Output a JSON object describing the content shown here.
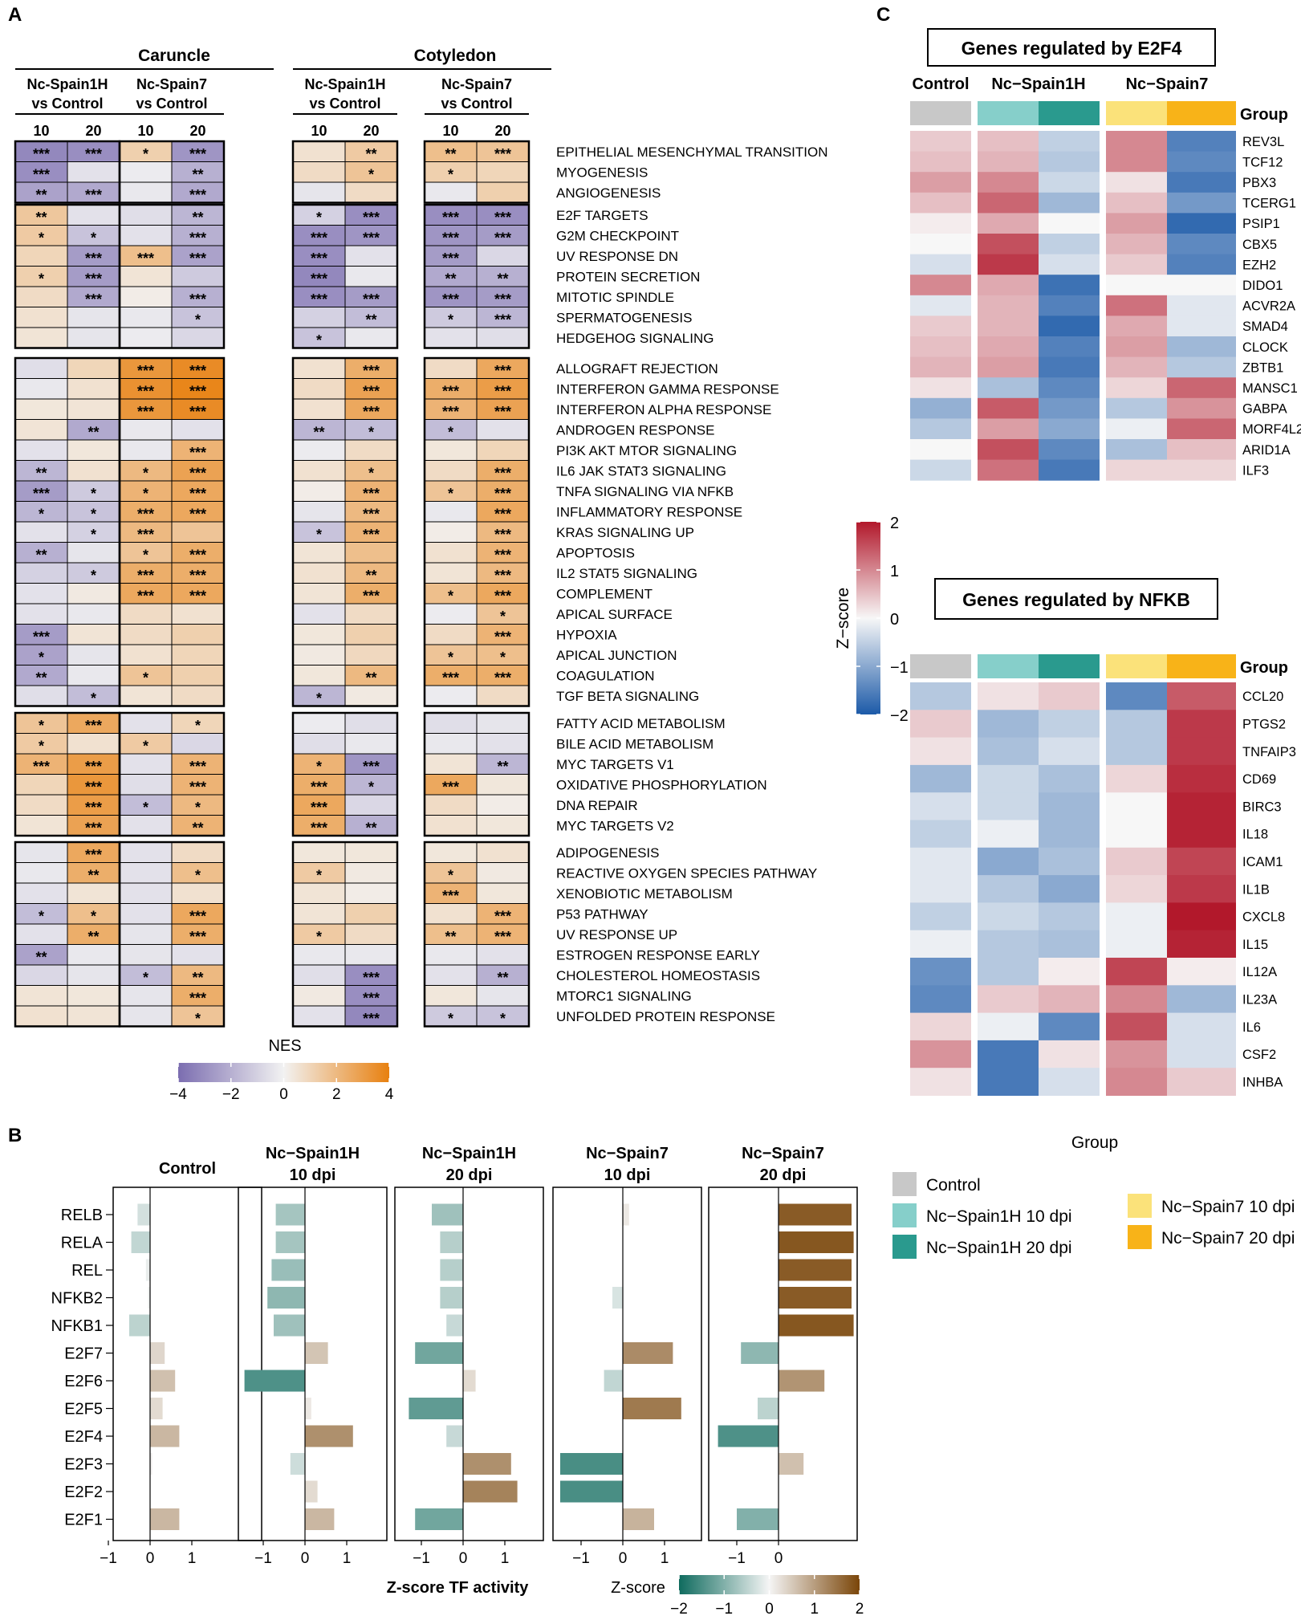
{
  "panels": {
    "A": "A",
    "B": "B",
    "C": "C"
  },
  "panelA": {
    "tissues": [
      "Caruncle",
      "Cotyledon"
    ],
    "comparisons": [
      "Nc-Spain1H\nvs Control",
      "Nc-Spain7\nvs Control",
      "Nc-Spain1H\nvs Control",
      "Nc-Spain7\nvs Control"
    ],
    "days": [
      "10",
      "20"
    ],
    "pathways": [
      "EPITHELIAL MESENCHYMAL TRANSITION",
      "MYOGENESIS",
      "ANGIOGENESIS",
      "E2F TARGETS",
      "G2M CHECKPOINT",
      "UV RESPONSE DN",
      "PROTEIN SECRETION",
      "MITOTIC SPINDLE",
      "SPERMATOGENESIS",
      "HEDGEHOG SIGNALING",
      "ALLOGRAFT REJECTION",
      "INTERFERON GAMMA RESPONSE",
      "INTERFERON ALPHA RESPONSE",
      "ANDROGEN RESPONSE",
      "PI3K AKT MTOR SIGNALING",
      "IL6 JAK STAT3 SIGNALING",
      "TNFA SIGNALING VIA NFKB",
      "INFLAMMATORY RESPONSE",
      "KRAS SIGNALING UP",
      "APOPTOSIS",
      "IL2 STAT5 SIGNALING",
      "COMPLEMENT",
      "APICAL SURFACE",
      "HYPOXIA",
      "APICAL JUNCTION",
      "COAGULATION",
      "TGF BETA SIGNALING",
      "FATTY ACID METABOLISM",
      "BILE ACID METABOLISM",
      "MYC TARGETS V1",
      "OXIDATIVE PHOSPHORYLATION",
      "DNA REPAIR",
      "MYC TARGETS V2",
      "ADIPOGENESIS",
      "REACTIVE OXYGEN SPECIES PATHWAY",
      "XENOBIOTIC METABOLISM",
      "P53 PATHWAY",
      "UV RESPONSE UP",
      "ESTROGEN RESPONSE EARLY",
      "CHOLESTEROL HOMEOSTASIS",
      "MTORC1 SIGNALING",
      "UNFOLDED PROTEIN RESPONSE"
    ],
    "row_groups": [
      3,
      7,
      17,
      6,
      9
    ],
    "nes": [
      [
        -3.2,
        -3.0,
        1.2,
        -2.8,
        0.6,
        1.4,
        1.8,
        1.6
      ],
      [
        -3.0,
        -0.5,
        -0.2,
        -2.0,
        0.8,
        1.6,
        1.2,
        1.0
      ],
      [
        -2.4,
        -2.2,
        -0.3,
        -2.2,
        -0.4,
        0.8,
        -0.3,
        1.2
      ],
      [
        1.5,
        -0.5,
        -0.6,
        -1.8,
        -1.0,
        -3.0,
        -3.0,
        -3.0
      ],
      [
        1.4,
        -1.4,
        -0.5,
        -2.0,
        -3.0,
        -2.8,
        -2.8,
        -2.6
      ],
      [
        1.0,
        -2.6,
        1.8,
        -2.4,
        -3.0,
        -0.5,
        -2.6,
        -0.8
      ],
      [
        1.2,
        -2.6,
        0.5,
        -1.2,
        -3.2,
        -0.3,
        -2.2,
        -2.0
      ],
      [
        0.8,
        -2.2,
        0.2,
        -2.0,
        -3.0,
        -2.6,
        -2.8,
        -2.6
      ],
      [
        0.6,
        -0.4,
        -0.3,
        -1.4,
        -1.0,
        -1.6,
        -1.2,
        -1.8
      ],
      [
        0.5,
        -0.4,
        -0.2,
        -0.8,
        -1.4,
        -0.3,
        -0.5,
        -0.6
      ],
      [
        -0.6,
        1.0,
        3.2,
        3.6,
        0.6,
        2.4,
        0.8,
        2.6
      ],
      [
        -0.3,
        0.6,
        3.4,
        3.8,
        0.8,
        2.8,
        2.4,
        3.0
      ],
      [
        0.4,
        0.5,
        3.2,
        3.6,
        0.6,
        2.6,
        2.2,
        2.8
      ],
      [
        0.5,
        -2.2,
        -0.3,
        -0.5,
        -1.8,
        -1.6,
        -1.6,
        -0.5
      ],
      [
        -0.5,
        0.4,
        -0.3,
        2.2,
        -0.2,
        0.8,
        0.4,
        1.0
      ],
      [
        -1.8,
        0.6,
        2.0,
        2.8,
        0.6,
        1.8,
        0.8,
        2.4
      ],
      [
        -2.6,
        -1.2,
        2.2,
        2.6,
        0.2,
        2.2,
        1.6,
        2.4
      ],
      [
        -1.8,
        -1.4,
        2.4,
        2.6,
        -0.4,
        2.0,
        -0.3,
        2.6
      ],
      [
        -0.5,
        -1.0,
        2.0,
        1.6,
        -1.4,
        2.2,
        0.2,
        2.0
      ],
      [
        -2.0,
        -0.4,
        1.6,
        2.4,
        0.5,
        1.8,
        0.6,
        2.2
      ],
      [
        -1.0,
        -1.2,
        2.4,
        2.4,
        0.6,
        2.0,
        0.5,
        2.0
      ],
      [
        -0.5,
        0.3,
        2.6,
        2.6,
        0.5,
        2.4,
        1.8,
        2.6
      ],
      [
        -0.5,
        -0.3,
        0.8,
        0.6,
        -0.5,
        0.8,
        -0.2,
        1.6
      ],
      [
        -2.6,
        0.5,
        0.8,
        1.2,
        0.4,
        1.2,
        0.8,
        2.2
      ],
      [
        -2.4,
        -0.4,
        0.6,
        1.0,
        0.3,
        0.9,
        1.6,
        1.8
      ],
      [
        -2.2,
        -0.3,
        1.6,
        1.2,
        0.4,
        2.0,
        2.4,
        2.4
      ],
      [
        -0.6,
        -1.6,
        0.5,
        0.8,
        -1.8,
        0.3,
        -0.2,
        0.8
      ],
      [
        1.6,
        2.6,
        -0.5,
        1.0,
        -0.2,
        -0.6,
        -0.6,
        -0.4
      ],
      [
        1.4,
        0.6,
        1.4,
        -0.8,
        -0.6,
        -0.3,
        -0.3,
        -0.5
      ],
      [
        2.2,
        3.0,
        -0.5,
        2.2,
        2.2,
        -2.8,
        0.5,
        -1.8
      ],
      [
        1.0,
        3.2,
        -0.6,
        2.2,
        2.4,
        -1.8,
        2.6,
        0.4
      ],
      [
        0.8,
        3.0,
        -1.6,
        2.0,
        2.6,
        -0.8,
        0.8,
        0.2
      ],
      [
        0.5,
        2.8,
        -0.5,
        2.2,
        2.4,
        -2.0,
        0.6,
        0.4
      ],
      [
        -0.4,
        2.6,
        -0.5,
        0.8,
        0.4,
        0.4,
        0.4,
        0.6
      ],
      [
        -0.3,
        2.4,
        -0.5,
        1.8,
        1.4,
        0.3,
        1.6,
        0.3
      ],
      [
        -0.5,
        0.5,
        -0.5,
        0.6,
        0.5,
        0.2,
        2.2,
        0.4
      ],
      [
        -1.6,
        1.8,
        -0.5,
        2.6,
        0.5,
        1.2,
        0.6,
        2.2
      ],
      [
        -0.5,
        2.4,
        -0.4,
        2.4,
        1.4,
        0.8,
        1.8,
        2.2
      ],
      [
        -2.4,
        -0.3,
        -0.4,
        -0.5,
        -0.3,
        -0.3,
        -0.3,
        -0.5
      ],
      [
        -0.8,
        -0.4,
        -1.6,
        2.0,
        -0.6,
        -3.0,
        -0.5,
        -2.0
      ],
      [
        0.5,
        0.4,
        -0.4,
        2.4,
        0.3,
        -3.0,
        0.4,
        -0.4
      ],
      [
        0.6,
        0.5,
        -0.4,
        1.6,
        -0.5,
        -3.2,
        -1.2,
        -1.4
      ]
    ],
    "stars": [
      [
        "***",
        "***",
        "*",
        "***",
        "",
        "**",
        "**",
        "***"
      ],
      [
        "***",
        "",
        "",
        "**",
        "",
        "*",
        "*",
        ""
      ],
      [
        "**",
        "***",
        "",
        "***",
        "",
        "",
        "",
        ""
      ],
      [
        "**",
        "",
        "",
        "**",
        "*",
        "***",
        "***",
        "***"
      ],
      [
        "*",
        "*",
        "",
        "***",
        "***",
        "***",
        "***",
        "***"
      ],
      [
        "",
        "***",
        "***",
        "***",
        "***",
        "",
        "***",
        ""
      ],
      [
        "*",
        "***",
        "",
        "",
        "***",
        "",
        "**",
        "**"
      ],
      [
        "",
        "***",
        "",
        "***",
        "***",
        "***",
        "***",
        "***"
      ],
      [
        "",
        "",
        "",
        "*",
        "",
        "**",
        "*",
        "***"
      ],
      [
        "",
        "",
        "",
        "",
        "*",
        "",
        "",
        ""
      ],
      [
        "",
        "",
        "***",
        "***",
        "",
        "***",
        "",
        "***"
      ],
      [
        "",
        "",
        "***",
        "***",
        "",
        "***",
        "***",
        "***"
      ],
      [
        "",
        "",
        "***",
        "***",
        "",
        "***",
        "***",
        "***"
      ],
      [
        "",
        "**",
        "",
        "",
        "**",
        "*",
        "*",
        ""
      ],
      [
        "",
        "",
        "",
        "***",
        "",
        "",
        "",
        ""
      ],
      [
        "**",
        "",
        "*",
        "***",
        "",
        "*",
        "",
        "***"
      ],
      [
        "***",
        "*",
        "*",
        "***",
        "",
        "***",
        "*",
        "***"
      ],
      [
        "*",
        "*",
        "***",
        "***",
        "",
        "***",
        "",
        "***"
      ],
      [
        "",
        "*",
        "***",
        "",
        "*",
        "***",
        "",
        "***"
      ],
      [
        "**",
        "",
        "*",
        "***",
        "",
        "",
        "",
        "***"
      ],
      [
        "",
        "*",
        "***",
        "***",
        "",
        "**",
        "",
        "***"
      ],
      [
        "",
        "",
        "***",
        "***",
        "",
        "***",
        "*",
        "***"
      ],
      [
        "",
        "",
        "",
        "",
        "",
        "",
        "",
        "*"
      ],
      [
        "***",
        "",
        "",
        "",
        "",
        "",
        "",
        "***"
      ],
      [
        "*",
        "",
        "",
        "",
        "",
        "",
        "*",
        "*"
      ],
      [
        "**",
        "",
        "*",
        "",
        "",
        "**",
        "***",
        "***"
      ],
      [
        "",
        "*",
        "",
        "",
        "*",
        "",
        "",
        ""
      ],
      [
        "*",
        "***",
        "",
        "*",
        "",
        "",
        "",
        ""
      ],
      [
        "*",
        "",
        "*",
        "",
        "",
        "",
        "",
        ""
      ],
      [
        "***",
        "***",
        "",
        "***",
        "*",
        "***",
        "",
        "**"
      ],
      [
        "",
        "***",
        "",
        "***",
        "***",
        "*",
        "***",
        ""
      ],
      [
        "",
        "***",
        "*",
        "*",
        "***",
        "",
        "",
        ""
      ],
      [
        "",
        "***",
        "",
        "**",
        "***",
        "**",
        "",
        ""
      ],
      [
        "",
        "***",
        "",
        "",
        "",
        "",
        "",
        ""
      ],
      [
        "",
        "**",
        "",
        "*",
        "*",
        "",
        "*",
        ""
      ],
      [
        "",
        "",
        "",
        "",
        "",
        "",
        "***",
        ""
      ],
      [
        "*",
        "*",
        "",
        "***",
        "",
        "",
        "",
        "***"
      ],
      [
        "",
        "**",
        "",
        "***",
        "*",
        "",
        "**",
        "***"
      ],
      [
        "**",
        "",
        "",
        "",
        "",
        "",
        "",
        ""
      ],
      [
        "",
        "",
        "*",
        "**",
        "",
        "***",
        "",
        "**"
      ],
      [
        "",
        "",
        "",
        "***",
        "",
        "***",
        "",
        ""
      ],
      [
        "",
        "",
        "",
        "*",
        "",
        "***",
        "*",
        "*"
      ]
    ],
    "legend": {
      "title": "NES",
      "ticks": [
        "−4",
        "−2",
        "0",
        "2",
        "4"
      ]
    }
  },
  "panelB": {
    "facets": [
      "Control",
      "Nc−Spain1H\n10 dpi",
      "Nc−Spain1H\n20 dpi",
      "Nc−Spain7\n10 dpi",
      "Nc−Spain7\n20 dpi"
    ],
    "tfs": [
      "RELB",
      "RELA",
      "REL",
      "NFKB2",
      "NFKB1",
      "E2F7",
      "E2F6",
      "E2F5",
      "E2F4",
      "E2F3",
      "E2F2",
      "E2F1"
    ],
    "values": [
      [
        -0.3,
        -0.45,
        -0.1,
        -0.05,
        -0.5,
        0.35,
        0.6,
        0.3,
        0.7,
        0.05,
        0.0,
        0.7
      ],
      [
        -0.7,
        -0.7,
        -0.8,
        -0.9,
        -0.75,
        0.55,
        -1.45,
        0.15,
        1.15,
        -0.35,
        0.3,
        0.7
      ],
      [
        -0.75,
        -0.55,
        -0.55,
        -0.55,
        -0.4,
        -1.15,
        0.3,
        -1.3,
        -0.4,
        1.15,
        1.3,
        -1.15
      ],
      [
        0.15,
        0.0,
        0.0,
        -0.25,
        0.0,
        1.2,
        -0.45,
        1.4,
        0.0,
        -1.5,
        -1.5,
        0.75
      ],
      [
        1.75,
        1.8,
        1.75,
        1.75,
        1.8,
        -0.9,
        1.1,
        -0.5,
        -1.45,
        0.6,
        0.0,
        -1.0
      ]
    ],
    "axes_ticks": [
      [
        "−1",
        "0",
        "1"
      ],
      [
        "−1",
        "0",
        "1"
      ],
      [
        "−1",
        "0",
        "1"
      ],
      [
        "−1",
        "0",
        "1"
      ],
      [
        "−1",
        "0"
      ]
    ],
    "xlabel": "Z-score TF activity",
    "colorbar": {
      "title": "Z-score",
      "ticks": [
        "−2",
        "−1",
        "0",
        "1",
        "2"
      ]
    }
  },
  "panelC": {
    "e2f4": {
      "title": "Genes regulated by E2F4",
      "groups": [
        "Control",
        "Nc−Spain1H",
        "Nc−Spain7"
      ],
      "group_label": "Group",
      "genes": [
        "REV3L",
        "TCF12",
        "PBX3",
        "TCERG1",
        "PSIP1",
        "CBX5",
        "EZH2",
        "DIDO1",
        "ACVR2A",
        "SMAD4",
        "CLOCK",
        "ZBTB1",
        "MANSC1",
        "GABPA",
        "MORF4L2",
        "ARID1A",
        "ILF3"
      ],
      "z": [
        [
          0.4,
          0.5,
          -0.5,
          1.0,
          -1.5
        ],
        [
          0.5,
          0.6,
          -0.6,
          1.0,
          -1.4
        ],
        [
          0.8,
          1.0,
          -0.4,
          0.2,
          -1.6
        ],
        [
          0.5,
          1.3,
          -0.8,
          0.5,
          -1.2
        ],
        [
          0.1,
          0.7,
          0.0,
          0.8,
          -1.8
        ],
        [
          0.0,
          1.5,
          -0.5,
          0.6,
          -1.4
        ],
        [
          -0.3,
          1.7,
          -0.3,
          0.4,
          -1.5
        ],
        [
          1.0,
          0.7,
          -1.7,
          0.0,
          0.0
        ],
        [
          -0.2,
          0.6,
          -1.5,
          1.2,
          -0.2
        ],
        [
          0.4,
          0.6,
          -1.8,
          0.7,
          -0.2
        ],
        [
          0.5,
          0.7,
          -1.5,
          0.8,
          -0.8
        ],
        [
          0.6,
          0.8,
          -1.6,
          0.6,
          -0.6
        ],
        [
          0.2,
          -0.7,
          -1.4,
          0.3,
          1.3
        ],
        [
          -0.9,
          1.4,
          -1.2,
          -0.6,
          0.9
        ],
        [
          -0.6,
          0.8,
          -1.0,
          -0.1,
          1.3
        ],
        [
          0.0,
          1.5,
          -1.4,
          -0.7,
          0.5
        ],
        [
          -0.4,
          1.2,
          -1.6,
          0.3,
          0.3
        ]
      ]
    },
    "nfkb": {
      "title": "Genes regulated by NFKB",
      "groups": [
        "Control",
        "Nc−Spain1H",
        "Nc−Spain7"
      ],
      "group_label": "Group",
      "genes": [
        "CCL20",
        "PTGS2",
        "TNFAIP3",
        "CD69",
        "BIRC3",
        "IL18",
        "ICAM1",
        "IL1B",
        "CXCL8",
        "IL15",
        "IL12A",
        "IL23A",
        "IL6",
        "CSF2",
        "INHBA"
      ],
      "z": [
        [
          -0.6,
          0.2,
          0.4,
          -1.4,
          1.4
        ],
        [
          0.4,
          -0.8,
          -0.5,
          -0.6,
          1.7
        ],
        [
          0.2,
          -0.7,
          -0.3,
          -0.6,
          1.7
        ],
        [
          -0.8,
          -0.4,
          -0.7,
          0.3,
          1.8
        ],
        [
          -0.3,
          -0.4,
          -0.8,
          0.0,
          1.9
        ],
        [
          -0.5,
          -0.1,
          -0.8,
          0.0,
          1.9
        ],
        [
          -0.2,
          -1.0,
          -0.7,
          0.4,
          1.6
        ],
        [
          -0.2,
          -0.6,
          -1.0,
          0.3,
          1.7
        ],
        [
          -0.5,
          -0.4,
          -0.6,
          -0.1,
          2.0
        ],
        [
          -0.1,
          -0.6,
          -0.7,
          -0.1,
          1.9
        ],
        [
          -1.3,
          -0.6,
          0.1,
          1.6,
          0.1
        ],
        [
          -1.4,
          0.4,
          0.6,
          1.0,
          -0.8
        ],
        [
          0.3,
          -0.1,
          -1.4,
          1.5,
          -0.3
        ],
        [
          0.9,
          -1.6,
          0.2,
          0.9,
          -0.3
        ],
        [
          0.2,
          -1.6,
          -0.3,
          1.0,
          0.4
        ]
      ]
    },
    "colorbar": {
      "title": "Z−score",
      "ticks": [
        "2",
        "1",
        "0",
        "−1",
        "−2"
      ]
    }
  },
  "legendGroup": {
    "title": "Group",
    "items": [
      "Control",
      "Nc−Spain1H 10 dpi",
      "Nc−Spain1H 20 dpi",
      "Nc−Spain7 10 dpi",
      "Nc−Spain7 20 dpi"
    ],
    "colors": [
      "#c8c8c8",
      "#86cfca",
      "#2a9a8e",
      "#fbe27a",
      "#f8b318"
    ]
  },
  "colors": {
    "nes_neg": "#7b6db0",
    "nes_mid": "#f2f2f2",
    "nes_pos": "#e8800f",
    "z_neg": "#1c5aa8",
    "z_mid": "#f7f7f7",
    "z_pos": "#b2182b",
    "tf_neg": "#0f6b5e",
    "tf_mid": "#f5f5f5",
    "tf_pos": "#7a4508"
  }
}
